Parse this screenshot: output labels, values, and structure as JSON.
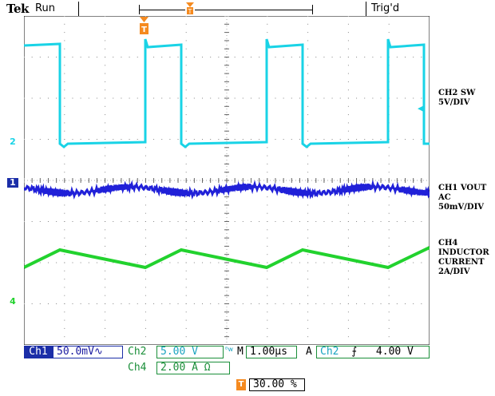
{
  "header": {
    "brand": "Tek",
    "state": "Run",
    "trigger_status": "Trig'd"
  },
  "markers": {
    "trigger_pos_glyph": "T",
    "trigger_level_glyph": "T",
    "ch2": "2",
    "ch1": "1",
    "ch4": "4",
    "ch2_level_arrow": "◀"
  },
  "labels": {
    "ch2": "CH2 SW\n5V/DIV",
    "ch1": "CH1 VOUT\nAC\n50mV/DIV",
    "ch4": "CH4\nINDUCTOR\nCURRENT\n2A/DIV"
  },
  "readout": {
    "ch1_tag": "Ch1",
    "ch1_scale": "50.0mV",
    "ch1_coupling": "∿",
    "ch2_tag": "Ch2",
    "ch2_scale": "5.00 V",
    "bw_glyph": "ᴮw",
    "m_tag": "M",
    "timebase": "1.00µs",
    "a_tag": "A",
    "trig_src": "Ch2",
    "trig_slope": "⨍",
    "trig_level": "4.00 V",
    "ch4_tag": "Ch4",
    "ch4_scale": "2.00 A Ω",
    "trig_pos": "30.00 %"
  },
  "colors": {
    "ch1": "#2020d8",
    "ch2": "#19d3e6",
    "ch4": "#22d22e",
    "accent": "#f58a1f",
    "readout_bg": "#1b2ea8"
  }
}
